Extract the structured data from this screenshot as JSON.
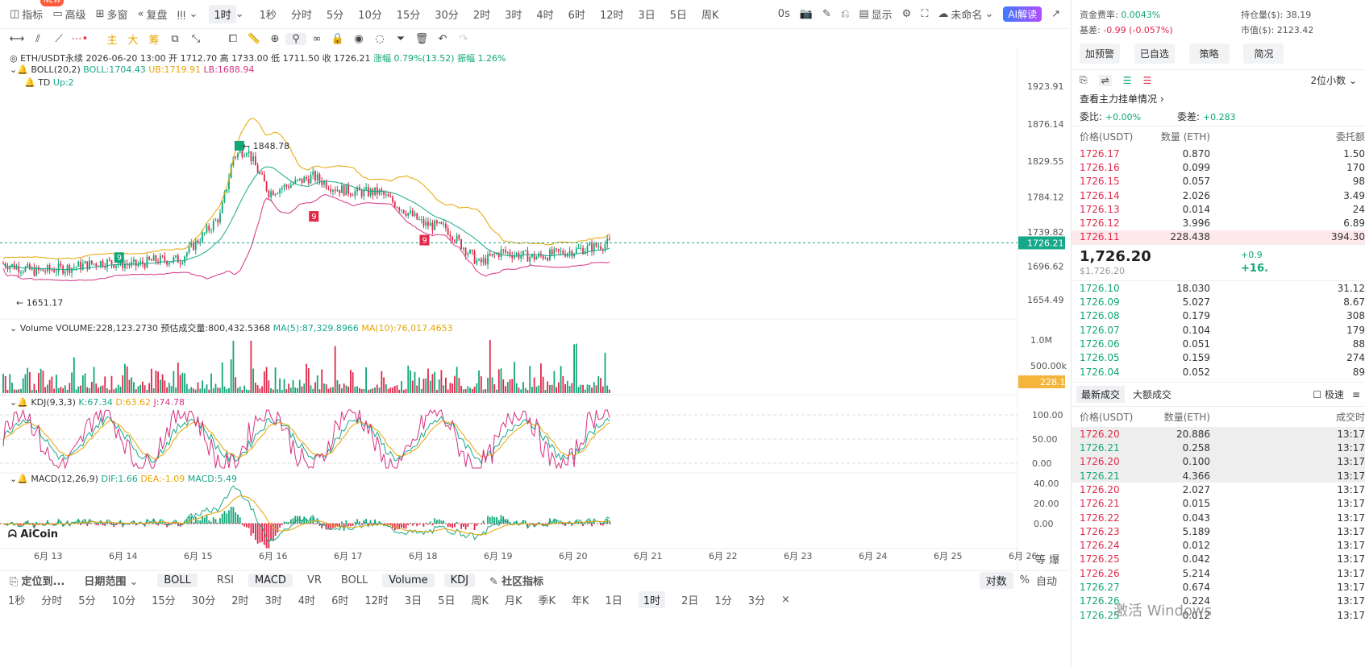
{
  "topbar": {
    "items": [
      {
        "icon": "indicator-icon",
        "label": "指标",
        "badge": "NEW"
      },
      {
        "icon": "advanced-icon",
        "label": "高级"
      },
      {
        "icon": "multi-window-icon",
        "label": "多窗"
      },
      {
        "icon": "replay-icon",
        "label": "复盘"
      }
    ],
    "timeframes": [
      "1秒",
      "分时",
      "5分",
      "10分",
      "15分",
      "30分",
      "2时",
      "3时",
      "4时",
      "6时",
      "12时",
      "3日",
      "5日",
      "周K"
    ],
    "active_timeframe": "1时",
    "right": {
      "delay": "0s",
      "display": "显示",
      "template": "未命名",
      "ai": "AI解读"
    }
  },
  "legend": {
    "main": {
      "pair": "ETH/USDT永续",
      "time": "2026-06-20 13:00",
      "open": "开 1712.70",
      "high": "高 1733.00",
      "low": "低 1711.50",
      "close": "收 1726.21",
      "change": "涨幅 0.79%(13.52)",
      "amp": "振幅 1.26%"
    },
    "boll": {
      "name": "BOLL(20,2)",
      "mid": "BOLL:1704.43",
      "ub": "UB:1719.91",
      "lb": "LB:1688.94"
    },
    "td": {
      "name": "TD",
      "val": "Up:2"
    },
    "vol": {
      "name": "Volume",
      "val": "VOLUME:228,123.2730",
      "est": "预估成交量:800,432.5368",
      "ma5": "MA(5):87,329.8966",
      "ma10": "MA(10):76,017.4653"
    },
    "kdj": {
      "name": "KDJ(9,3,3)",
      "k": "K:67.34",
      "d": "D:63.62",
      "j": "J:74.78"
    },
    "macd": {
      "name": "MACD(12,26,9)",
      "dif": "DIF:1.66",
      "dea": "DEA:-1.09",
      "macd": "MACD:5.49"
    }
  },
  "axes": {
    "price": [
      "1923.91",
      "1876.14",
      "1829.55",
      "1784.12",
      "1739.82",
      "1696.62",
      "1654.49"
    ],
    "current_price": "1726.21",
    "vol": [
      "1.0M",
      "500.00k"
    ],
    "current_vol": "228.1k",
    "kdj": [
      "100.00",
      "50.00",
      "0.00"
    ],
    "macd": [
      "40.00",
      "20.00",
      "0.00"
    ],
    "dates": [
      "6月 13",
      "6月 14",
      "6月 15",
      "6月 16",
      "6月 17",
      "6月 18",
      "6月 19",
      "6月 20",
      "6月 21",
      "6月 22",
      "6月 23",
      "6月 24",
      "6月 25",
      "6月 26"
    ],
    "high_label": "1848.78",
    "low_label": "1651.17",
    "td9": "9",
    "logo": "AiCoin",
    "corner": [
      "等",
      "爆"
    ]
  },
  "bottom1": {
    "locate": "定位到...",
    "range": "日期范围",
    "tabs": [
      "BOLL",
      "RSI",
      "MACD",
      "VR",
      "BOLL",
      "Volume",
      "KDJ"
    ],
    "community": "社区指标",
    "right": [
      "对数",
      "%",
      "自动"
    ]
  },
  "bottom2": {
    "items": [
      "1秒",
      "分时",
      "5分",
      "10分",
      "15分",
      "30分",
      "2时",
      "3时",
      "4时",
      "6时",
      "12时",
      "3日",
      "5日",
      "周K",
      "月K",
      "季K",
      "年K",
      "1日",
      "1时",
      "2日",
      "1分",
      "3分",
      "×"
    ],
    "selected": "1时"
  },
  "side": {
    "funding": {
      "label": "资金费率:",
      "value": "0.0043%"
    },
    "oi": {
      "label": "持仓量($):",
      "value": "38.19"
    },
    "basis": {
      "label": "基差:",
      "value": "-0.99 (-0.057%)"
    },
    "mcap": {
      "label": "市值($):",
      "value": "2123.42"
    },
    "buttons": [
      "加预警",
      "已自选",
      "策略",
      "简况"
    ],
    "decimals": "2位小数",
    "depth_title": "查看主力挂单情况",
    "ratio": {
      "label": "委比:",
      "value": "+0.00%"
    },
    "diff": {
      "label": "委差:",
      "value": "+0.283"
    },
    "ob_headers": [
      "价格(USDT)",
      "数量 (ETH)",
      "委托额"
    ],
    "asks": [
      [
        "1726.17",
        "0.870",
        "1.50"
      ],
      [
        "1726.16",
        "0.099",
        "170"
      ],
      [
        "1726.15",
        "0.057",
        "98"
      ],
      [
        "1726.14",
        "2.026",
        "3.49"
      ],
      [
        "1726.13",
        "0.014",
        "24"
      ],
      [
        "1726.12",
        "3.996",
        "6.89"
      ],
      [
        "1726.11",
        "228.438",
        "394.30"
      ]
    ],
    "last_price": "1,726.20",
    "last_usd": "$1,726.20",
    "chg1": "+0.9",
    "chg2": "+16.",
    "bids": [
      [
        "1726.10",
        "18.030",
        "31.12"
      ],
      [
        "1726.09",
        "5.027",
        "8.67"
      ],
      [
        "1726.08",
        "0.179",
        "308"
      ],
      [
        "1726.07",
        "0.104",
        "179"
      ],
      [
        "1726.06",
        "0.051",
        "88"
      ],
      [
        "1726.05",
        "0.159",
        "274"
      ],
      [
        "1726.04",
        "0.052",
        "89"
      ]
    ],
    "trade_tabs": [
      "最新成交",
      "大额成交"
    ],
    "fast": "极速",
    "trade_headers": [
      "价格(USDT)",
      "数量(ETH)",
      "成交时"
    ],
    "trades": [
      [
        "1726.20",
        "20.886",
        "13:17",
        "r"
      ],
      [
        "1726.21",
        "0.258",
        "13:17",
        "g"
      ],
      [
        "1726.20",
        "0.100",
        "13:17",
        "r"
      ],
      [
        "1726.21",
        "4.366",
        "13:17",
        "g"
      ],
      [
        "1726.20",
        "2.027",
        "13:17",
        "r"
      ],
      [
        "1726.21",
        "0.015",
        "13:17",
        "r"
      ],
      [
        "1726.22",
        "0.043",
        "13:17",
        "r"
      ],
      [
        "1726.23",
        "5.189",
        "13:17",
        "r"
      ],
      [
        "1726.24",
        "0.012",
        "13:17",
        "r"
      ],
      [
        "1726.25",
        "0.042",
        "13:17",
        "r"
      ],
      [
        "1726.26",
        "5.214",
        "13:17",
        "r"
      ],
      [
        "1726.27",
        "0.674",
        "13:17",
        "g"
      ],
      [
        "1726.26",
        "0.224",
        "13:17",
        "g"
      ],
      [
        "1726.25",
        "0.012",
        "13:17",
        "g"
      ]
    ],
    "watermark": "激活 Windows"
  }
}
